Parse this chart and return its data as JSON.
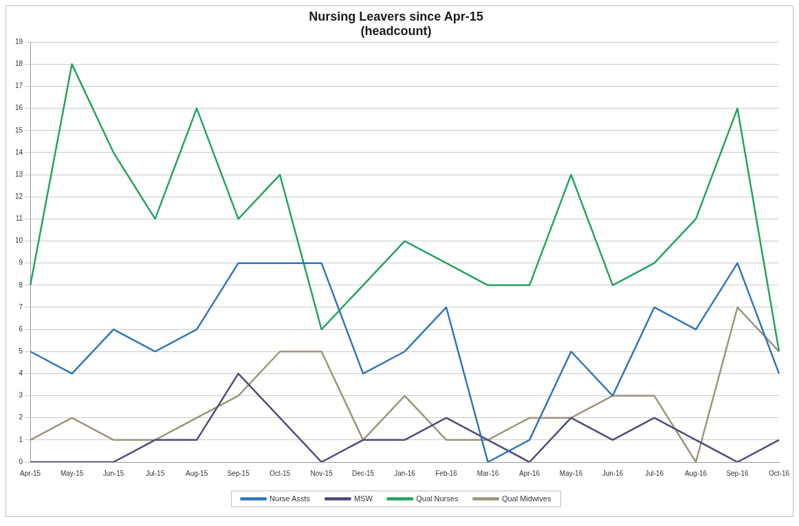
{
  "chart_data": {
    "type": "line",
    "title": [
      "Nursing Leavers since Apr-15",
      "(headcount)"
    ],
    "categories": [
      "Apr-15",
      "May-15",
      "Jun-15",
      "Jul-15",
      "Aug-15",
      "Sep-15",
      "Oct-15",
      "Nov-15",
      "Dec-15",
      "Jan-16",
      "Feb-16",
      "Mar-16",
      "Apr-16",
      "May-16",
      "Jun-16",
      "Jul-16",
      "Aug-16",
      "Sep-16",
      "Oct-16"
    ],
    "series": [
      {
        "name": "Nurse Assts",
        "color": "#2e75b6",
        "values": [
          5,
          4,
          6,
          5,
          6,
          9,
          9,
          9,
          4,
          5,
          7,
          0,
          1,
          5,
          3,
          7,
          6,
          9,
          4
        ]
      },
      {
        "name": "MSW",
        "color": "#4e4a78",
        "values": [
          0,
          0,
          0,
          1,
          1,
          4,
          2,
          0,
          1,
          1,
          2,
          1,
          0,
          2,
          1,
          2,
          1,
          0,
          1
        ]
      },
      {
        "name": "Qual Nurses",
        "color": "#21a35f",
        "values": [
          8,
          18,
          14,
          11,
          16,
          11,
          13,
          6,
          8,
          10,
          9,
          8,
          8,
          13,
          8,
          9,
          11,
          16,
          5
        ]
      },
      {
        "name": "Qual Midwives",
        "color": "#9c9479",
        "values": [
          1,
          2,
          1,
          1,
          2,
          3,
          5,
          5,
          1,
          3,
          1,
          1,
          2,
          2,
          3,
          3,
          0,
          7,
          5
        ]
      }
    ],
    "ylim": [
      0,
      19
    ],
    "yticks": [
      0,
      1,
      2,
      3,
      4,
      5,
      6,
      7,
      8,
      9,
      10,
      11,
      12,
      13,
      14,
      15,
      16,
      17,
      18,
      19
    ],
    "grid": "y",
    "legend": "bottom",
    "marker": "none",
    "line_style": "solid"
  }
}
